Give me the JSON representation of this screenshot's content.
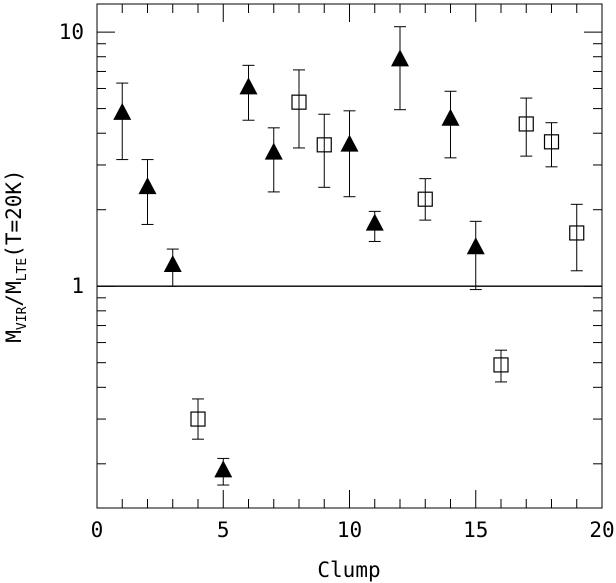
{
  "chart_data": {
    "type": "scatter",
    "title": "",
    "xlabel": "Clump",
    "ylabel": {
      "parts": [
        "M",
        "VIR",
        "/M",
        "LTE",
        "(T=20K)"
      ]
    },
    "xlim": [
      0,
      20
    ],
    "ylim": [
      0.134,
      12.9
    ],
    "yscale": "log",
    "x_major_ticks": [
      0,
      5,
      10,
      15,
      20
    ],
    "x_tick_labels": [
      "0",
      "5",
      "10",
      "15",
      "20"
    ],
    "y_labeled_ticks": [
      1,
      10
    ],
    "y_tick_labels": [
      "1",
      "10"
    ],
    "reference_line_y": 1,
    "series": [
      {
        "marker": "filled-triangle",
        "points": [
          {
            "x": 1,
            "y": 4.8,
            "lo": 3.15,
            "hi": 6.3
          },
          {
            "x": 2,
            "y": 2.45,
            "lo": 1.75,
            "hi": 3.15
          },
          {
            "x": 3,
            "y": 1.21,
            "lo": 1.0,
            "hi": 1.4
          },
          {
            "x": 5,
            "y": 0.188,
            "lo": 0.165,
            "hi": 0.21
          },
          {
            "x": 6,
            "y": 6.05,
            "lo": 4.5,
            "hi": 7.4
          },
          {
            "x": 7,
            "y": 3.35,
            "lo": 2.35,
            "hi": 4.2
          },
          {
            "x": 10,
            "y": 3.6,
            "lo": 2.25,
            "hi": 4.9
          },
          {
            "x": 11,
            "y": 1.76,
            "lo": 1.5,
            "hi": 1.97
          },
          {
            "x": 12,
            "y": 7.8,
            "lo": 4.95,
            "hi": 10.5
          },
          {
            "x": 14,
            "y": 4.55,
            "lo": 3.2,
            "hi": 5.85
          },
          {
            "x": 15,
            "y": 1.42,
            "lo": 0.97,
            "hi": 1.8
          }
        ]
      },
      {
        "marker": "open-square",
        "points": [
          {
            "x": 4,
            "y": 0.3,
            "lo": 0.25,
            "hi": 0.36
          },
          {
            "x": 8,
            "y": 5.3,
            "lo": 3.5,
            "hi": 7.1
          },
          {
            "x": 9,
            "y": 3.6,
            "lo": 2.45,
            "hi": 4.75
          },
          {
            "x": 13,
            "y": 2.2,
            "lo": 1.82,
            "hi": 2.65
          },
          {
            "x": 16,
            "y": 0.49,
            "lo": 0.42,
            "hi": 0.56
          },
          {
            "x": 17,
            "y": 4.35,
            "lo": 3.25,
            "hi": 5.5
          },
          {
            "x": 18,
            "y": 3.7,
            "lo": 2.95,
            "hi": 4.4
          },
          {
            "x": 19,
            "y": 1.62,
            "lo": 1.15,
            "hi": 2.1
          }
        ]
      }
    ],
    "grid": false,
    "legend": "none"
  }
}
